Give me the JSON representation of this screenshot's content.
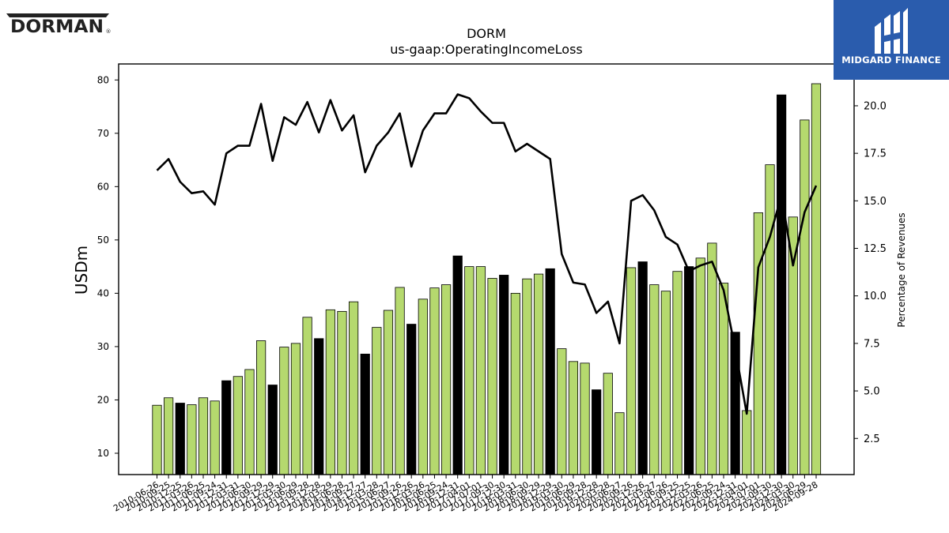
{
  "chart_data": {
    "type": "bar",
    "title": "DORM",
    "subtitle": "us-gaap:OperatingIncomeLoss",
    "ylabel": "USDm",
    "y2label": "Percentage of Revenues",
    "ylim": [
      6,
      83
    ],
    "y2lim": [
      0.6,
      22.2
    ],
    "yticks": [
      10,
      20,
      30,
      40,
      50,
      60,
      70,
      80
    ],
    "y2ticks": [
      "2.5",
      "5.0",
      "7.5",
      "10.0",
      "12.5",
      "15.0",
      "17.5",
      "20.0"
    ],
    "bar_color": "#b5d96e",
    "highlight_color": "#000000",
    "line_color": "#000000",
    "categories": [
      "2010-06-26",
      "2010-09-25",
      "2010-12-25",
      "2011-03-26",
      "2011-06-25",
      "2011-09-24",
      "2011-12-31",
      "2012-03-31",
      "2012-06-30",
      "2012-09-29",
      "2012-12-29",
      "2013-03-30",
      "2013-06-29",
      "2013-09-28",
      "2013-12-28",
      "2014-03-29",
      "2014-06-28",
      "2014-09-27",
      "2014-12-27",
      "2015-03-28",
      "2015-06-27",
      "2015-09-26",
      "2015-12-26",
      "2016-03-26",
      "2016-06-25",
      "2016-09-24",
      "2016-12-31",
      "2017-04-01",
      "2017-07-01",
      "2017-09-30",
      "2017-12-30",
      "2018-03-31",
      "2018-06-30",
      "2018-09-29",
      "2018-12-29",
      "2019-03-30",
      "2019-06-29",
      "2019-09-28",
      "2019-12-28",
      "2020-03-28",
      "2020-06-27",
      "2020-09-26",
      "2020-12-26",
      "2021-03-27",
      "2021-06-26",
      "2021-09-25",
      "2021-12-25",
      "2022-03-26",
      "2022-06-25",
      "2022-09-24",
      "2022-12-31",
      "2023-04-01",
      "2023-07-01",
      "2023-09-30",
      "2023-12-30",
      "2024-03-30",
      "2024-06-29",
      "2024-09-28"
    ],
    "values": [
      19,
      20.4,
      19.4,
      19.1,
      20.4,
      19.8,
      23.6,
      24.4,
      25.7,
      31.1,
      22.8,
      29.9,
      30.6,
      35.5,
      31.5,
      36.9,
      36.6,
      38.4,
      28.6,
      33.6,
      36.8,
      41.1,
      34.2,
      38.9,
      41,
      41.6,
      47,
      45,
      45,
      42.8,
      43.4,
      40,
      42.7,
      43.6,
      44.6,
      29.6,
      27.2,
      26.9,
      21.9,
      25,
      17.6,
      44.8,
      45.9,
      41.6,
      40.4,
      44.1,
      45,
      46.6,
      49.4,
      41.9,
      32.7,
      18,
      55.1,
      64.1,
      77.2,
      54.3,
      72.5,
      79.3
    ],
    "highlight": [
      false,
      false,
      true,
      false,
      false,
      false,
      true,
      false,
      false,
      false,
      true,
      false,
      false,
      false,
      true,
      false,
      false,
      false,
      true,
      false,
      false,
      false,
      true,
      false,
      false,
      false,
      true,
      false,
      false,
      false,
      true,
      false,
      false,
      false,
      true,
      false,
      false,
      false,
      true,
      false,
      false,
      false,
      true,
      false,
      false,
      false,
      true,
      false,
      false,
      false,
      true,
      false,
      false,
      false,
      true,
      false,
      false,
      false
    ],
    "pct_revenues": [
      16.6,
      17.2,
      16,
      15.4,
      15.5,
      14.8,
      17.5,
      17.9,
      17.9,
      20.1,
      17.1,
      19.4,
      19,
      20.2,
      18.6,
      20.3,
      18.7,
      19.5,
      16.5,
      17.9,
      18.6,
      19.6,
      16.8,
      18.7,
      19.6,
      19.6,
      20.6,
      20.4,
      19.7,
      19.1,
      19.1,
      17.6,
      18,
      17.6,
      17.2,
      12.2,
      10.7,
      10.6,
      9.1,
      9.7,
      7.5,
      15,
      15.3,
      14.5,
      13.1,
      12.7,
      11.3,
      11.6,
      11.8,
      10.3,
      7.2,
      3.8,
      11.5,
      13.1,
      15.3,
      11.6,
      14.4,
      15.8
    ]
  },
  "branding": {
    "left_logo_text": "DORMAN",
    "left_logo_mark": "®",
    "right_logo_text": "MIDGARD FINANCE"
  }
}
